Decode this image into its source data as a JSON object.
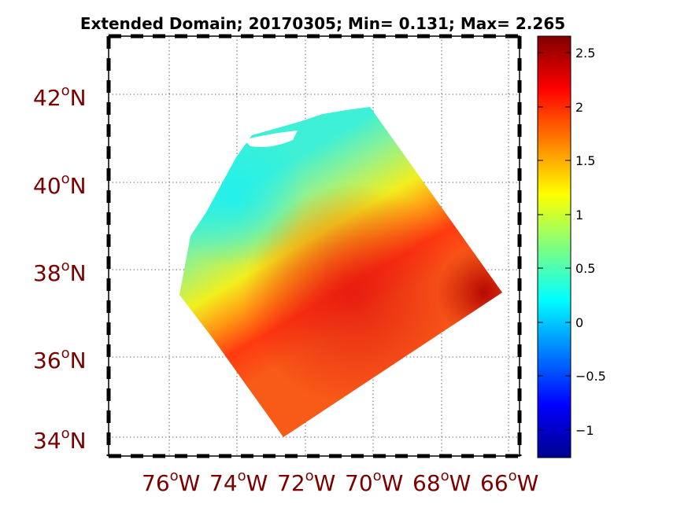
{
  "title": "Extended Domain; 20170305; Min= 0.131; Max= 2.265",
  "map": {
    "lat_labels": [
      {
        "deg": "42",
        "hem": "N"
      },
      {
        "deg": "40",
        "hem": "N"
      },
      {
        "deg": "38",
        "hem": "N"
      },
      {
        "deg": "36",
        "hem": "N"
      },
      {
        "deg": "34",
        "hem": "N"
      }
    ],
    "lon_labels": [
      {
        "deg": "76",
        "hem": "W"
      },
      {
        "deg": "74",
        "hem": "W"
      },
      {
        "deg": "72",
        "hem": "W"
      },
      {
        "deg": "70",
        "hem": "W"
      },
      {
        "deg": "68",
        "hem": "W"
      },
      {
        "deg": "66",
        "hem": "W"
      }
    ],
    "grid": true,
    "colormap": "jet"
  },
  "colorbar": {
    "range": [
      -1.3,
      2.6
    ],
    "ticks": [
      "2.5",
      "2",
      "1.5",
      "1",
      "0.5",
      "0",
      "−0.5",
      "−1"
    ]
  }
}
